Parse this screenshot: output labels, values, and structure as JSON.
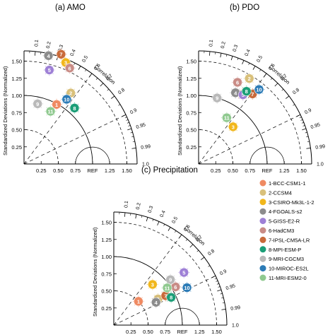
{
  "chart_data": [
    {
      "type": "scatter",
      "title": "(a) AMO",
      "ylabel": "Standardized Deviations (Normalized)",
      "corr_label": "Correlation",
      "x_ticks": [
        "0.25",
        "0.50",
        "0.75",
        "REF",
        "1.25",
        "1.50"
      ],
      "y_ticks": [
        "1.50",
        "1.25",
        "1.00",
        "0.75",
        "0.50",
        "0.25"
      ],
      "corr_ticks": [
        "0.1",
        "0.2",
        "0.3",
        "0.4",
        "0.5",
        "0.6",
        "0.7",
        "0.8",
        "0.9",
        "0.95",
        "0.99",
        "1.0"
      ],
      "sd_max": 1.65,
      "models": [
        {
          "id": "1",
          "sd": 0.99,
          "corr": 0.48
        },
        {
          "id": "2",
          "sd": 1.24,
          "corr": 0.55
        },
        {
          "id": "3",
          "sd": 1.6,
          "corr": 0.38
        },
        {
          "id": "4",
          "sd": 1.62,
          "corr": 0.22
        },
        {
          "id": "5",
          "sd": 1.42,
          "corr": 0.26
        },
        {
          "id": "6",
          "sd": 1.55,
          "corr": 0.43
        },
        {
          "id": "7",
          "sd": 1.69,
          "corr": 0.32
        },
        {
          "id": "8",
          "sd": 1.1,
          "corr": 0.67
        },
        {
          "id": "9",
          "sd": 0.9,
          "corr": 0.22
        },
        {
          "id": "10",
          "sd": 1.13,
          "corr": 0.55
        },
        {
          "id": "11",
          "sd": 0.86,
          "corr": 0.45
        }
      ]
    },
    {
      "type": "scatter",
      "title": "(b) PDO",
      "ylabel": "Standardized Deviations (Normalized)",
      "corr_label": "Correlation",
      "x_ticks": [
        "0.25",
        "0.50",
        "0.75",
        "REF",
        "1.25",
        "1.50"
      ],
      "y_ticks": [
        "1.50",
        "1.25",
        "1.00",
        "0.75",
        "0.50",
        "0.25"
      ],
      "corr_ticks": [
        "0.1",
        "0.2",
        "0.3",
        "0.4",
        "0.5",
        "0.6",
        "0.7",
        "0.8",
        "0.9",
        "0.95",
        "0.99",
        "1.0"
      ],
      "sd_max": 1.65,
      "models": [
        {
          "id": "1",
          "sd": 1.2,
          "corr": 0.53
        },
        {
          "id": "2",
          "sd": 1.45,
          "corr": 0.51
        },
        {
          "id": "3",
          "sd": 0.74,
          "corr": 0.68
        },
        {
          "id": "4",
          "sd": 1.17,
          "corr": 0.46
        },
        {
          "id": "5",
          "sd": 1.2,
          "corr": 0.54
        },
        {
          "id": "6",
          "sd": 1.32,
          "corr": 0.43
        },
        {
          "id": "7",
          "sd": 1.29,
          "corr": 0.61
        },
        {
          "id": "8",
          "sd": 1.27,
          "corr": 0.55
        },
        {
          "id": "9",
          "sd": 1.0,
          "corr": 0.27
        },
        {
          "id": "10",
          "sd": 1.4,
          "corr": 0.63
        },
        {
          "id": "11",
          "sd": 0.79,
          "corr": 0.52
        }
      ]
    },
    {
      "type": "scatter",
      "title": "(c) Precipitation",
      "ylabel": "Standardized Deviations (Normalized)",
      "corr_label": "Correlation",
      "x_ticks": [
        "0.25",
        "0.50",
        "0.75",
        "REF",
        "1.25",
        "1.50"
      ],
      "y_ticks": [
        "1.50",
        "1.25",
        "1.00",
        "0.75",
        "0.50",
        "0.25"
      ],
      "corr_ticks": [
        "0.1",
        "0.2",
        "0.3",
        "0.4",
        "0.5",
        "0.6",
        "0.7",
        "0.8",
        "0.9",
        "0.95",
        "0.99",
        "1.0"
      ],
      "sd_max": 1.65,
      "models": [
        {
          "id": "1",
          "sd": 0.5,
          "corr": 0.72
        },
        {
          "id": "2",
          "sd": 0.75,
          "corr": 0.86
        },
        {
          "id": "3",
          "sd": 0.82,
          "corr": 0.69
        },
        {
          "id": "4",
          "sd": 0.7,
          "corr": 0.88
        },
        {
          "id": "5",
          "sd": 1.28,
          "corr": 0.8
        },
        {
          "id": "6",
          "sd": 1.06,
          "corr": 0.85
        },
        {
          "id": "7",
          "sd": 0.87,
          "corr": 0.87
        },
        {
          "id": "8",
          "sd": 0.93,
          "corr": 0.9
        },
        {
          "id": "9",
          "sd": 1.06,
          "corr": 0.78
        },
        {
          "id": "10",
          "sd": 1.2,
          "corr": 0.89
        },
        {
          "id": "11",
          "sd": 0.95,
          "corr": 0.82
        }
      ]
    }
  ],
  "legend": [
    {
      "label": "1-BCC-CSM1-1",
      "color": "#ef8a62"
    },
    {
      "label": "2-CCSM4",
      "color": "#d9c07a"
    },
    {
      "label": "3-CSIRO-Mk3L-1-2",
      "color": "#f1b71c"
    },
    {
      "label": "4-FGOALS-s2",
      "color": "#8c8c8c"
    },
    {
      "label": "5-GISS-E2-R",
      "color": "#9e80d6"
    },
    {
      "label": "6-HadCM3",
      "color": "#c98c86"
    },
    {
      "label": "7-IPSL-CM5A-LR",
      "color": "#c96a3a"
    },
    {
      "label": "8-MPI-ESM-P",
      "color": "#1b9e77"
    },
    {
      "label": "9-MRI-CGCM3",
      "color": "#b9b9b9"
    },
    {
      "label": "10-MIROC-ES2L",
      "color": "#2c7bb6"
    },
    {
      "label": "11-MRI-ESM2-0",
      "color": "#8fc98f"
    }
  ]
}
